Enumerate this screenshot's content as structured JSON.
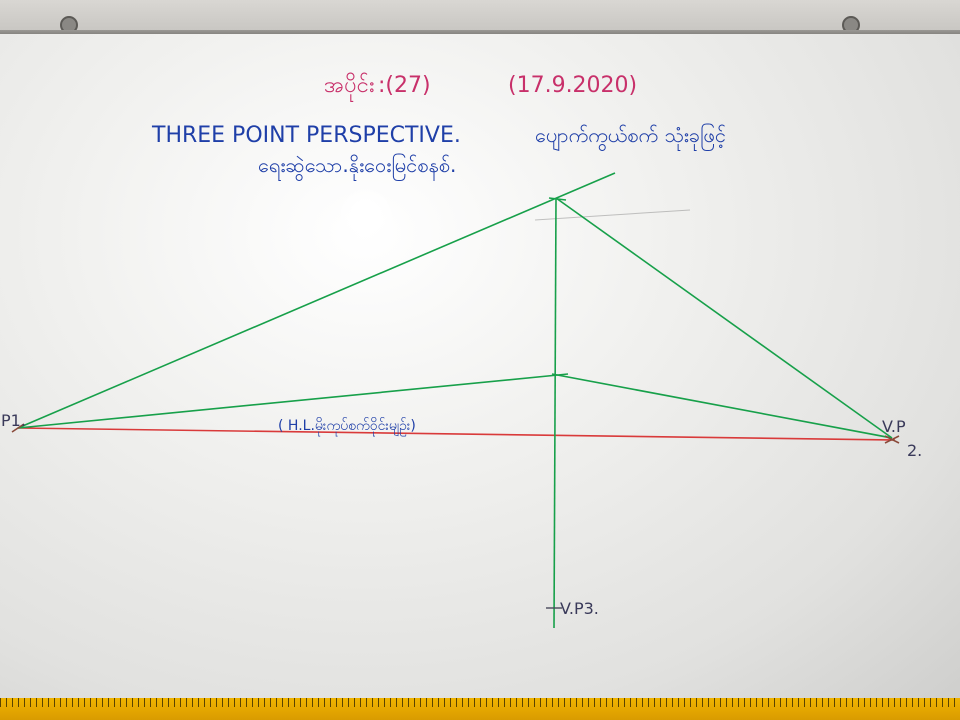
{
  "board": {
    "header_myanmar": "အပိုင်း",
    "header_number": ":(27)",
    "header_date": "(17.9.2020)",
    "title": "THREE POINT PERSPECTIVE.",
    "title_myanmar": "ပျောက်ကွယ်စက် သုံးခုဖြင့်",
    "subtitle_myanmar": "ရေးဆွဲသော.နိုးဝေးမြင်စနစ်.",
    "label_vp1": "P1.",
    "label_vp2_top": "V.P",
    "label_vp2_bottom": "2.",
    "label_vp3": "V.P3.",
    "label_horizon": "( H.L.မိုးကုပ်စက်ဝိုင်းမျဉ်း)"
  },
  "colors": {
    "header_ink": "#c8306a",
    "title_ink": "#1f3fa8",
    "green_ink": "#17a04a",
    "red_ink": "#d93a3a"
  }
}
